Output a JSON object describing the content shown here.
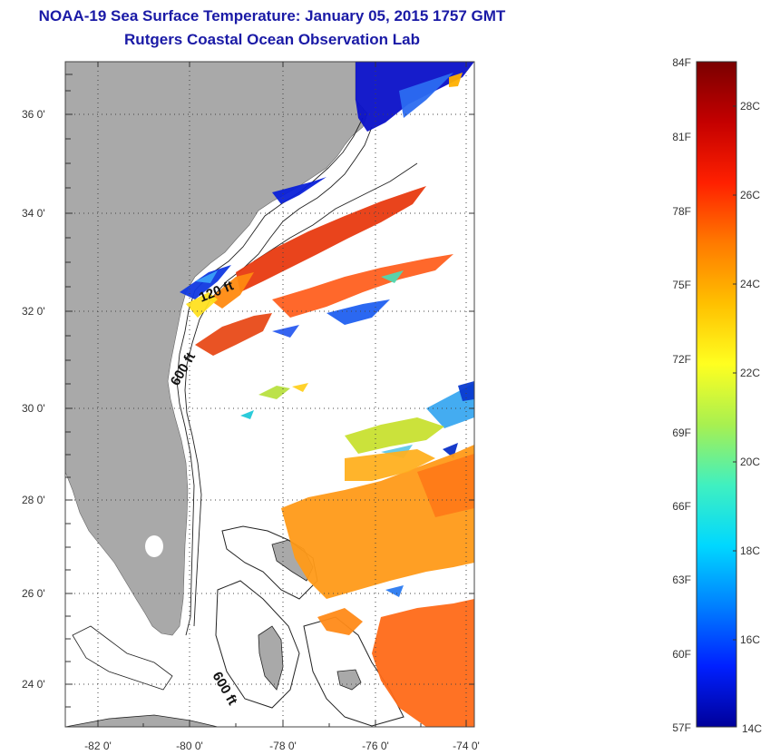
{
  "title": {
    "line1": "NOAA-19 Sea Surface Temperature:  January 05, 2015 1757 GMT",
    "line2": "Rutgers Coastal Ocean Observation Lab"
  },
  "map": {
    "lon_labels": [
      "-82 0'",
      "-80 0'",
      "-78 0'",
      "-76 0'",
      "-74 0'"
    ],
    "lat_labels": [
      "36 0'",
      "34 0'",
      "32 0'",
      "30 0'",
      "28 0'",
      "26 0'",
      "24 0'"
    ],
    "contour_labels": [
      "120 ft",
      "600 ft",
      "600 ft"
    ],
    "colors": {
      "land": "#a9a9a9",
      "ocean": "#ffffff",
      "contour": "#222222",
      "grid": "#555555"
    }
  },
  "colorbar": {
    "fahrenheit": [
      "84F",
      "81F",
      "78F",
      "75F",
      "72F",
      "69F",
      "66F",
      "63F",
      "60F",
      "57F"
    ],
    "celsius": [
      "28C",
      "26C",
      "24C",
      "22C",
      "20C",
      "18C",
      "16C",
      "14C"
    ],
    "gradient": [
      "#7a0000",
      "#c40000",
      "#ff2000",
      "#ff7a00",
      "#ffc000",
      "#ffff20",
      "#a8f050",
      "#40f0c0",
      "#00d8ff",
      "#0080ff",
      "#0020ff",
      "#00009a"
    ]
  }
}
